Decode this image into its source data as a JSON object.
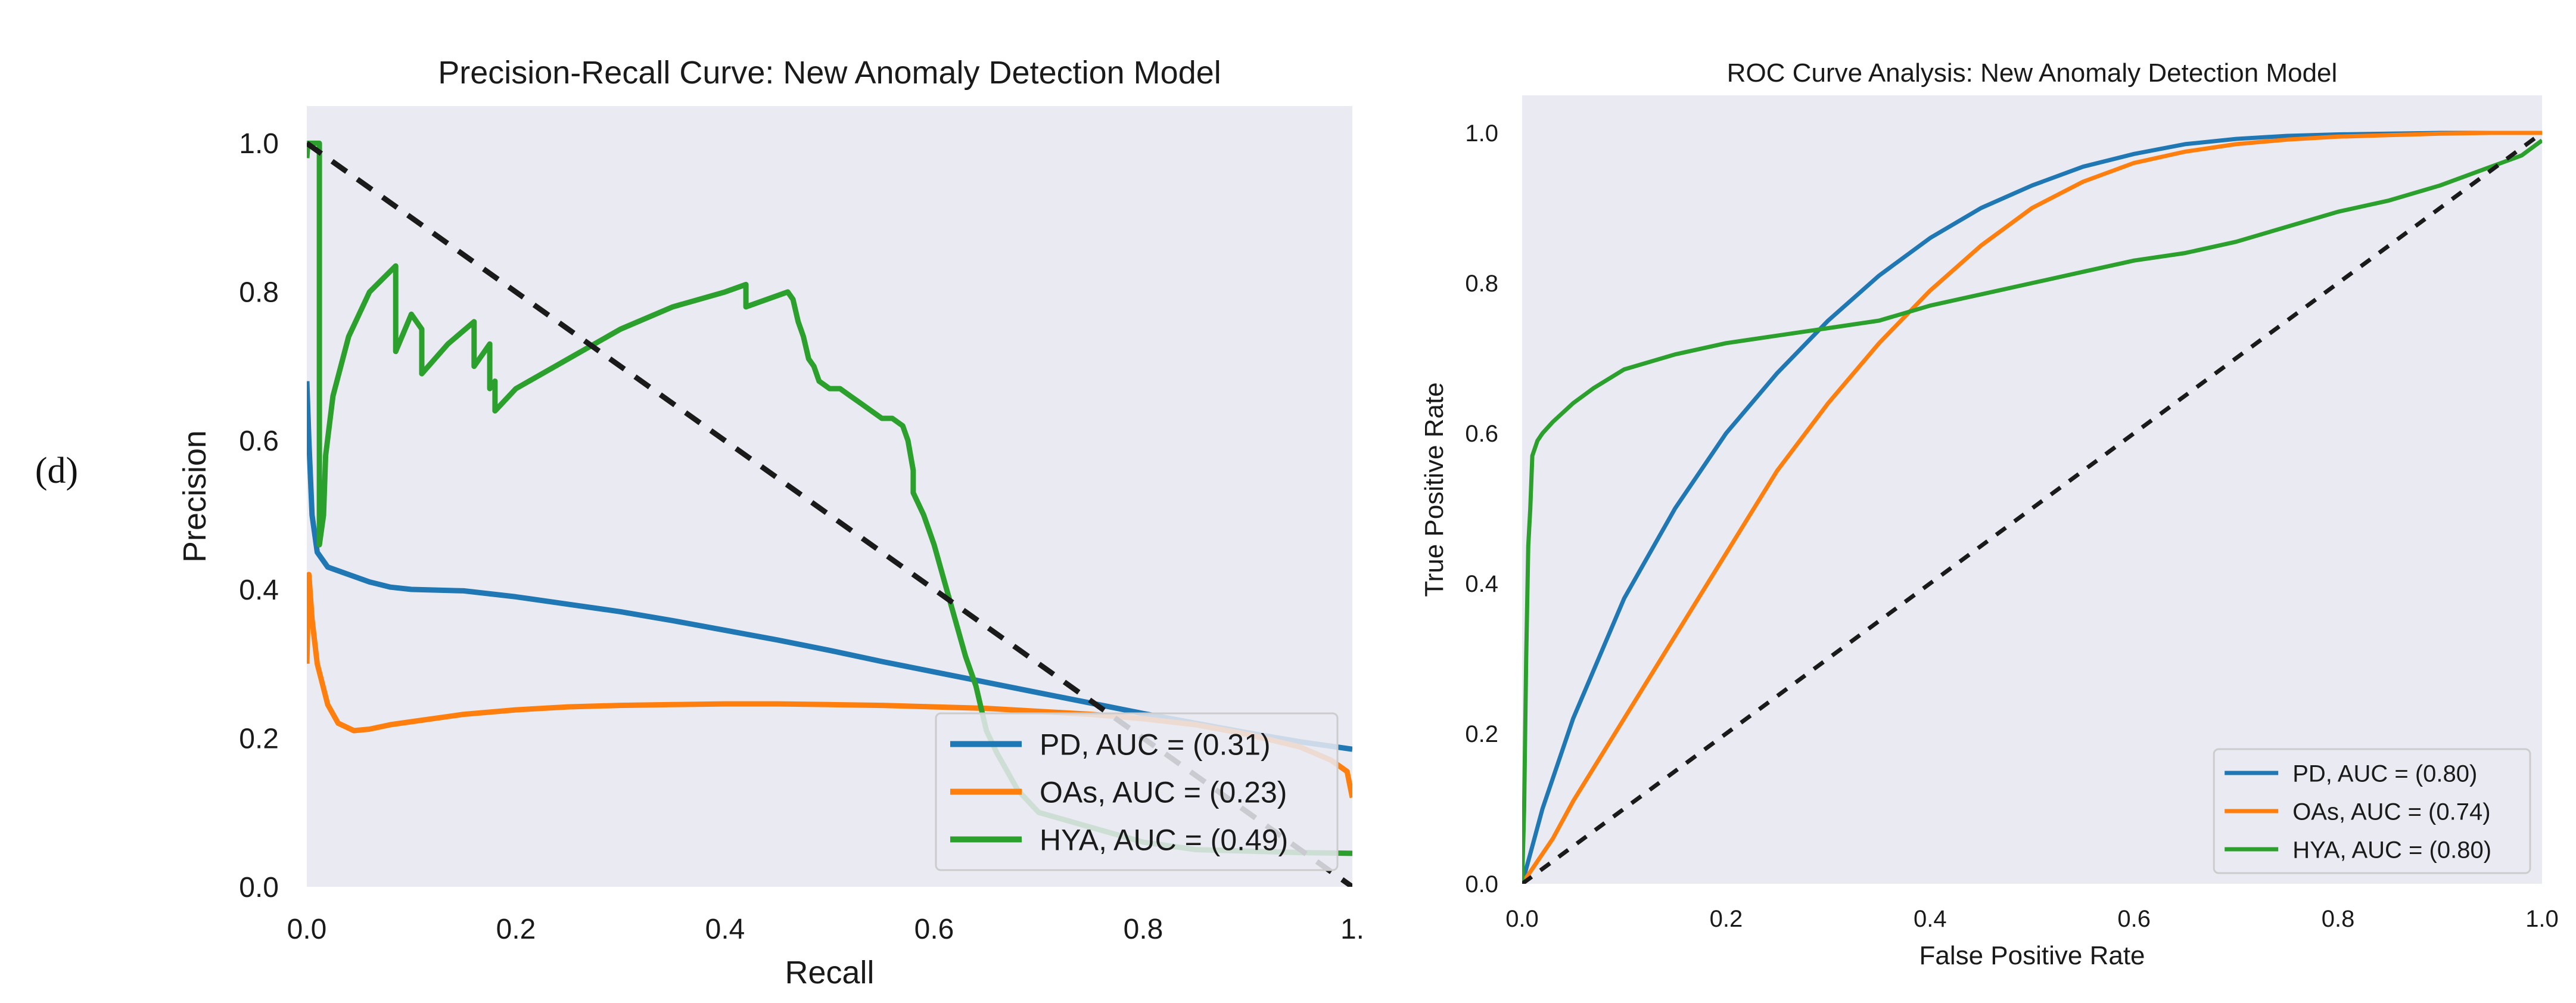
{
  "panel_label": "(d)",
  "chart_data": [
    {
      "type": "line",
      "title": "Precision-Recall Curve: New Anomaly Detection Model",
      "xlabel": "Recall",
      "ylabel": "Precision",
      "xlim": [
        0,
        1
      ],
      "ylim": [
        0,
        1.05
      ],
      "xticks": [
        0.0,
        0.2,
        0.4,
        0.6,
        0.8,
        1.0
      ],
      "xtick_labels": [
        "0.0",
        "0.2",
        "0.4",
        "0.6",
        "0.8",
        "1."
      ],
      "yticks": [
        0.0,
        0.2,
        0.4,
        0.6,
        0.8,
        1.0
      ],
      "ytick_labels": [
        "0.0",
        "0.2",
        "0.4",
        "0.6",
        "0.8",
        "1.0"
      ],
      "grid": false,
      "legend_position": "bottom-right",
      "series": [
        {
          "name": "PD, AUC = (0.31)",
          "color": "#1f77b4",
          "x": [
            0.0,
            0.002,
            0.005,
            0.01,
            0.02,
            0.04,
            0.06,
            0.08,
            0.1,
            0.15,
            0.2,
            0.25,
            0.3,
            0.35,
            0.4,
            0.45,
            0.5,
            0.55,
            0.6,
            0.65,
            0.7,
            0.75,
            0.8,
            0.85,
            0.9,
            0.95,
            1.0
          ],
          "y": [
            0.68,
            0.6,
            0.5,
            0.45,
            0.43,
            0.42,
            0.41,
            0.403,
            0.4,
            0.398,
            0.39,
            0.38,
            0.37,
            0.358,
            0.345,
            0.332,
            0.318,
            0.303,
            0.289,
            0.275,
            0.261,
            0.247,
            0.233,
            0.22,
            0.207,
            0.195,
            0.185
          ]
        },
        {
          "name": "OAs, AUC = (0.23)",
          "color": "#ff7f0e",
          "x": [
            0.0,
            0.002,
            0.005,
            0.01,
            0.02,
            0.03,
            0.045,
            0.06,
            0.08,
            0.1,
            0.15,
            0.2,
            0.25,
            0.3,
            0.35,
            0.4,
            0.45,
            0.5,
            0.55,
            0.6,
            0.65,
            0.7,
            0.75,
            0.8,
            0.85,
            0.9,
            0.95,
            0.98,
            0.995,
            1.0
          ],
          "y": [
            0.3,
            0.42,
            0.36,
            0.3,
            0.245,
            0.22,
            0.21,
            0.212,
            0.218,
            0.222,
            0.232,
            0.238,
            0.242,
            0.244,
            0.245,
            0.246,
            0.246,
            0.245,
            0.244,
            0.242,
            0.24,
            0.236,
            0.232,
            0.226,
            0.218,
            0.205,
            0.188,
            0.17,
            0.155,
            0.12
          ]
        },
        {
          "name": "HYA, AUC = (0.49)",
          "color": "#2ca02c",
          "x": [
            0.0,
            0.001,
            0.001,
            0.012,
            0.012,
            0.016,
            0.018,
            0.025,
            0.04,
            0.06,
            0.085,
            0.085,
            0.1,
            0.11,
            0.11,
            0.135,
            0.16,
            0.16,
            0.165,
            0.17,
            0.175,
            0.175,
            0.18,
            0.18,
            0.2,
            0.25,
            0.3,
            0.35,
            0.4,
            0.42,
            0.42,
            0.44,
            0.46,
            0.465,
            0.47,
            0.475,
            0.48,
            0.485,
            0.49,
            0.5,
            0.51,
            0.52,
            0.53,
            0.54,
            0.55,
            0.56,
            0.57,
            0.575,
            0.58,
            0.58,
            0.59,
            0.6,
            0.61,
            0.62,
            0.63,
            0.64,
            0.645,
            0.65,
            0.66,
            0.67,
            0.68,
            0.7,
            0.75,
            0.8,
            0.85,
            0.9,
            0.95,
            1.0
          ],
          "y": [
            0.98,
            1.0,
            1.0,
            1.0,
            0.46,
            0.5,
            0.58,
            0.66,
            0.74,
            0.8,
            0.835,
            0.72,
            0.77,
            0.75,
            0.69,
            0.73,
            0.76,
            0.7,
            0.71,
            0.72,
            0.73,
            0.67,
            0.68,
            0.64,
            0.67,
            0.71,
            0.75,
            0.78,
            0.8,
            0.81,
            0.78,
            0.79,
            0.8,
            0.79,
            0.76,
            0.74,
            0.71,
            0.7,
            0.68,
            0.67,
            0.67,
            0.66,
            0.65,
            0.64,
            0.63,
            0.63,
            0.62,
            0.6,
            0.56,
            0.53,
            0.5,
            0.46,
            0.41,
            0.36,
            0.31,
            0.27,
            0.24,
            0.21,
            0.18,
            0.155,
            0.13,
            0.1,
            0.08,
            0.06,
            0.05,
            0.048,
            0.046,
            0.045
          ]
        },
        {
          "name": "",
          "color": "#1a1a1a",
          "dashed": true,
          "x": [
            0.0,
            1.0
          ],
          "y": [
            1.0,
            0.0
          ]
        }
      ]
    },
    {
      "type": "line",
      "title": "ROC Curve Analysis: New Anomaly Detection Model",
      "xlabel": "False Positive Rate",
      "ylabel": "True Positive Rate",
      "xlim": [
        0,
        1
      ],
      "ylim": [
        0,
        1.05
      ],
      "xticks": [
        0.0,
        0.2,
        0.4,
        0.6,
        0.8,
        1.0
      ],
      "xtick_labels": [
        "0.0",
        "0.2",
        "0.4",
        "0.6",
        "0.8",
        "1.0"
      ],
      "yticks": [
        0.0,
        0.2,
        0.4,
        0.6,
        0.8,
        1.0
      ],
      "ytick_labels": [
        "0.0",
        "0.2",
        "0.4",
        "0.6",
        "0.8",
        "1.0"
      ],
      "grid": false,
      "legend_position": "bottom-right",
      "series": [
        {
          "name": "PD, AUC = (0.80)",
          "color": "#1f77b4",
          "x": [
            0.0,
            0.02,
            0.05,
            0.1,
            0.15,
            0.2,
            0.25,
            0.3,
            0.35,
            0.4,
            0.45,
            0.5,
            0.55,
            0.6,
            0.65,
            0.7,
            0.75,
            0.8,
            0.85,
            0.9,
            0.95,
            1.0
          ],
          "y": [
            0.0,
            0.1,
            0.22,
            0.38,
            0.5,
            0.6,
            0.68,
            0.75,
            0.81,
            0.86,
            0.9,
            0.93,
            0.955,
            0.972,
            0.985,
            0.992,
            0.996,
            0.998,
            0.999,
            1.0,
            1.0,
            1.0
          ]
        },
        {
          "name": "OAs, AUC = (0.74)",
          "color": "#ff7f0e",
          "x": [
            0.0,
            0.03,
            0.05,
            0.1,
            0.15,
            0.2,
            0.25,
            0.3,
            0.35,
            0.4,
            0.45,
            0.5,
            0.55,
            0.6,
            0.65,
            0.7,
            0.75,
            0.8,
            0.85,
            0.9,
            0.95,
            1.0
          ],
          "y": [
            0.0,
            0.06,
            0.11,
            0.22,
            0.33,
            0.44,
            0.55,
            0.64,
            0.72,
            0.79,
            0.85,
            0.9,
            0.935,
            0.96,
            0.975,
            0.985,
            0.991,
            0.995,
            0.997,
            0.999,
            1.0,
            1.0
          ]
        },
        {
          "name": "HYA, AUC = (0.80)",
          "color": "#2ca02c",
          "x": [
            0.0,
            0.002,
            0.004,
            0.006,
            0.008,
            0.01,
            0.015,
            0.02,
            0.03,
            0.05,
            0.07,
            0.1,
            0.15,
            0.2,
            0.25,
            0.3,
            0.35,
            0.4,
            0.45,
            0.5,
            0.55,
            0.6,
            0.65,
            0.7,
            0.75,
            0.8,
            0.85,
            0.9,
            0.95,
            0.98,
            1.0
          ],
          "y": [
            0.0,
            0.1,
            0.3,
            0.45,
            0.5,
            0.57,
            0.59,
            0.6,
            0.615,
            0.64,
            0.66,
            0.685,
            0.705,
            0.72,
            0.73,
            0.74,
            0.75,
            0.77,
            0.785,
            0.8,
            0.815,
            0.83,
            0.84,
            0.855,
            0.875,
            0.895,
            0.91,
            0.93,
            0.955,
            0.97,
            0.99
          ]
        },
        {
          "name": "",
          "color": "#1a1a1a",
          "dashed": true,
          "x": [
            0.0,
            1.0
          ],
          "y": [
            0.0,
            1.0
          ]
        }
      ]
    }
  ]
}
